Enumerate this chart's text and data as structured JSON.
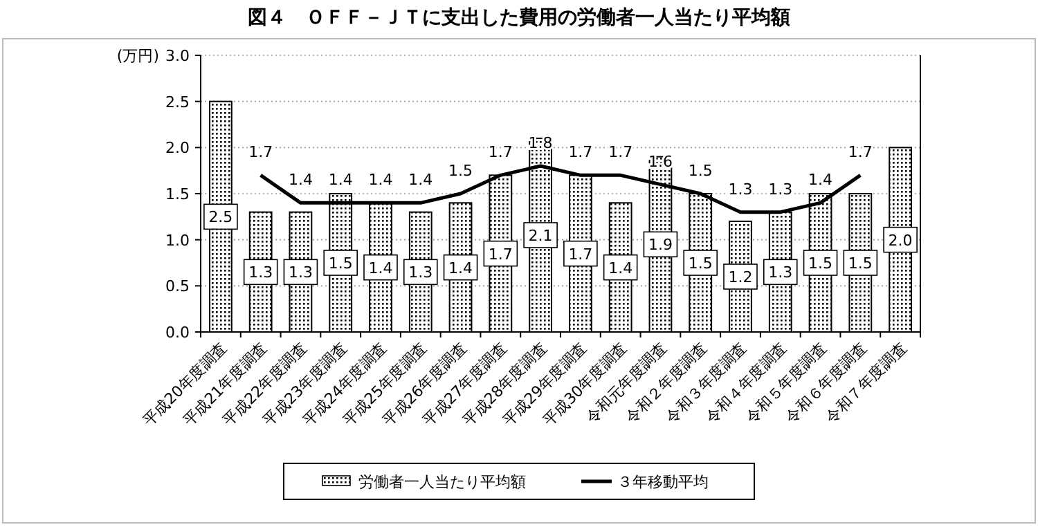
{
  "chart_data": {
    "type": "bar",
    "title": "図４　ＯＦＦ－ＪＴに支出した費用の労働者一人当たり平均額",
    "ylabel": "(万円)",
    "categories": [
      "平成20年度調査",
      "平成21年度調査",
      "平成22年度調査",
      "平成23年度調査",
      "平成24年度調査",
      "平成25年度調査",
      "平成26年度調査",
      "平成27年度調査",
      "平成28年度調査",
      "平成29年度調査",
      "平成30年度調査",
      "令和元年度調査",
      "令和２年度調査",
      "令和３年度調査",
      "令和４年度調査",
      "令和５年度調査",
      "令和６年度調査",
      "令和７年度調査"
    ],
    "series": [
      {
        "name": "労働者一人当たり平均額",
        "color": "#000000",
        "values": [
          2.5,
          1.3,
          1.3,
          1.5,
          1.4,
          1.3,
          1.4,
          1.7,
          2.1,
          1.7,
          1.4,
          1.9,
          1.5,
          1.2,
          1.3,
          1.5,
          1.5,
          2.0
        ],
        "value_labels": [
          "2.5",
          "1.3",
          "1.3",
          "1.5",
          "1.4",
          "1.3",
          "1.4",
          "1.7",
          "2.1",
          "1.7",
          "1.4",
          "1.9",
          "1.5",
          "1.2",
          "1.3",
          "1.5",
          "1.5",
          "2.0"
        ]
      },
      {
        "name": "３年移動平均",
        "type": "line",
        "color": "#000000",
        "values": [
          null,
          1.7,
          1.4,
          1.4,
          1.4,
          1.4,
          1.5,
          1.7,
          1.8,
          1.7,
          1.7,
          1.6,
          1.5,
          1.3,
          1.3,
          1.4,
          1.7,
          null
        ],
        "value_labels": [
          null,
          "1.7",
          "1.4",
          "1.4",
          "1.4",
          "1.4",
          "1.5",
          "1.7",
          "1.8",
          "1.7",
          "1.7",
          "1.6",
          "1.5",
          "1.3",
          "1.3",
          "1.4",
          "1.7",
          null
        ]
      }
    ],
    "ylim": [
      0,
      3
    ],
    "yticks": [
      {
        "value": 0,
        "label": "0.0"
      },
      {
        "value": 0.5,
        "label": "0.5"
      },
      {
        "value": 1,
        "label": "1.0"
      },
      {
        "value": 1.5,
        "label": "1.5"
      },
      {
        "value": 2,
        "label": "2.0"
      },
      {
        "value": 2.5,
        "label": "2.5"
      },
      {
        "value": 3,
        "label": "3.0"
      }
    ],
    "grid": "y",
    "legend": "bottom",
    "marker": "none"
  }
}
